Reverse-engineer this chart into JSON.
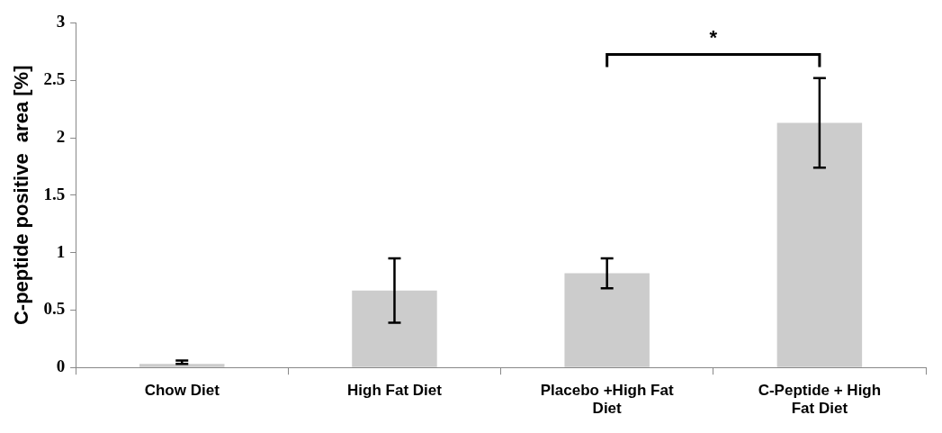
{
  "chart_data": {
    "type": "bar",
    "ylabel": "C-peptide positive  area [%]",
    "categories": [
      "Chow Diet",
      "High Fat Diet",
      "Placebo +High Fat Diet",
      "C-Peptide + High Fat Diet"
    ],
    "values": [
      0.03,
      0.67,
      0.82,
      2.13
    ],
    "errors": [
      [
        0.03,
        0.06
      ],
      0.28,
      0.13,
      0.39
    ],
    "color": "#cccccc",
    "ylim": [
      0,
      3
    ],
    "yticks": [
      0,
      0.5,
      1,
      1.5,
      2,
      2.5,
      3
    ],
    "grid": false,
    "legend": false,
    "annotations": [
      "*"
    ]
  }
}
